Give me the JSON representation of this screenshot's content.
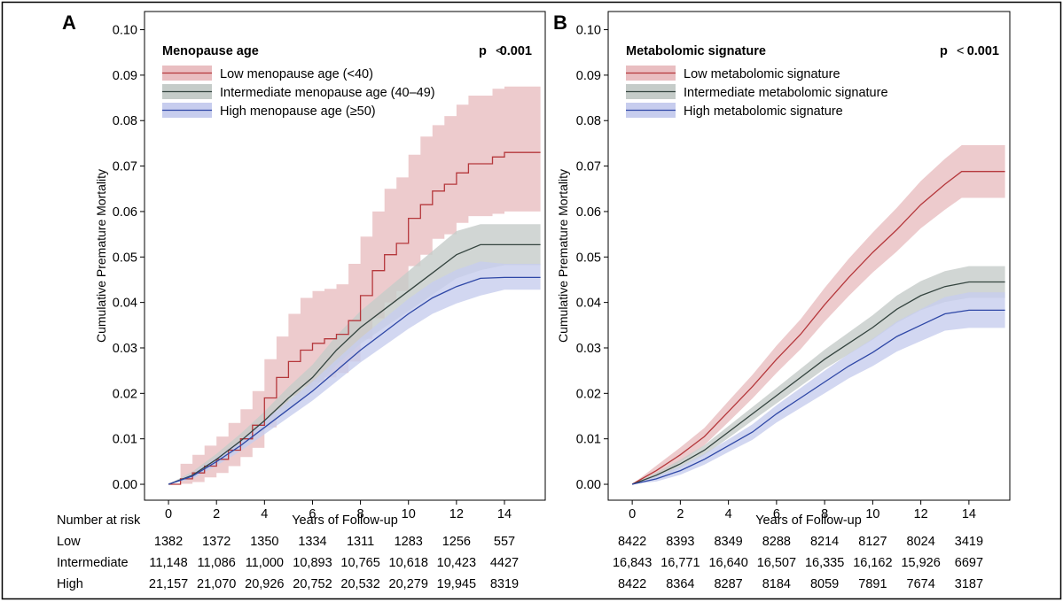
{
  "risk_table": {
    "header": "Number at risk",
    "row_labels": [
      "Low",
      "Intermediate",
      "High"
    ]
  },
  "colors": {
    "low": "#b5383c",
    "intermediate": "#34443f",
    "high": "#2e47a6",
    "low_band": "#e9bec1",
    "intermediate_band": "#c5ccc9",
    "high_band": "#c7cdee",
    "frame": "#000000"
  },
  "chart_data": [
    {
      "type": "line",
      "panel_label": "A",
      "title": "Menopause age",
      "p_label": "p",
      "p_op": "<",
      "p_value": "0.001",
      "xlabel": "Years of Follow-up",
      "ylabel": "Cumulative Premature Mortality",
      "xlim": [
        -1,
        15.7
      ],
      "ylim": [
        -0.0035,
        0.104
      ],
      "xticks": [
        "0",
        "2",
        "4",
        "6",
        "8",
        "10",
        "12",
        "14"
      ],
      "yticks": [
        "0.00",
        "0.01",
        "0.02",
        "0.03",
        "0.04",
        "0.05",
        "0.06",
        "0.07",
        "0.08",
        "0.09",
        "0.10"
      ],
      "series": [
        {
          "key": "low",
          "name": "Low menopause age (<40)",
          "step": true,
          "x": [
            0,
            0.5,
            1,
            1.5,
            2,
            2.5,
            3,
            3.5,
            4,
            4.5,
            5,
            5.5,
            6,
            6.5,
            7,
            7.5,
            8,
            8.5,
            9,
            9.5,
            10,
            10.5,
            11,
            11.5,
            12,
            12.5,
            13,
            13.5,
            14,
            15.5
          ],
          "values": [
            0,
            0.0012,
            0.0025,
            0.004,
            0.0055,
            0.0075,
            0.01,
            0.013,
            0.019,
            0.0235,
            0.027,
            0.0295,
            0.031,
            0.032,
            0.033,
            0.036,
            0.0415,
            0.047,
            0.0505,
            0.053,
            0.0585,
            0.0615,
            0.0645,
            0.066,
            0.0685,
            0.0705,
            0.0705,
            0.072,
            0.073,
            0.073
          ],
          "lower": [
            0,
            0.0001,
            0.0005,
            0.0015,
            0.0025,
            0.004,
            0.006,
            0.008,
            0.0125,
            0.0165,
            0.0195,
            0.0215,
            0.0225,
            0.0235,
            0.0245,
            0.027,
            0.032,
            0.0365,
            0.04,
            0.0425,
            0.048,
            0.0505,
            0.054,
            0.055,
            0.0575,
            0.059,
            0.059,
            0.0595,
            0.06,
            0.06
          ],
          "upper": [
            0,
            0.0045,
            0.0065,
            0.0085,
            0.0105,
            0.0135,
            0.0165,
            0.0205,
            0.0275,
            0.0325,
            0.0375,
            0.041,
            0.0425,
            0.043,
            0.044,
            0.0485,
            0.0545,
            0.06,
            0.065,
            0.0675,
            0.0725,
            0.0765,
            0.079,
            0.081,
            0.0835,
            0.0855,
            0.0855,
            0.087,
            0.0875,
            0.0875
          ]
        },
        {
          "key": "intermediate",
          "name": "Intermediate menopause age (40–49)",
          "step": false,
          "x": [
            0,
            1,
            2,
            3,
            4,
            5,
            6,
            7,
            8,
            9,
            10,
            11,
            12,
            13,
            14,
            15.5
          ],
          "values": [
            0,
            0.002,
            0.0055,
            0.0095,
            0.014,
            0.019,
            0.0235,
            0.0295,
            0.0345,
            0.0385,
            0.0425,
            0.0465,
            0.0505,
            0.0527,
            0.0527,
            0.0527
          ],
          "lower": [
            0,
            0.0012,
            0.0043,
            0.0079,
            0.012,
            0.0166,
            0.0207,
            0.0263,
            0.0309,
            0.0345,
            0.0381,
            0.0417,
            0.0453,
            0.0471,
            0.0482,
            0.0482
          ],
          "upper": [
            0,
            0.0028,
            0.0067,
            0.0111,
            0.016,
            0.0214,
            0.0263,
            0.0327,
            0.0381,
            0.0425,
            0.0469,
            0.0513,
            0.0557,
            0.0572,
            0.0572,
            0.0572
          ]
        },
        {
          "key": "high",
          "name": "High menopause age (≥50)",
          "step": false,
          "x": [
            0,
            1,
            2,
            3,
            4,
            5,
            6,
            7,
            8,
            9,
            10,
            11,
            12,
            13,
            14,
            15.5
          ],
          "values": [
            0,
            0.0018,
            0.005,
            0.0085,
            0.0125,
            0.0165,
            0.0205,
            0.025,
            0.0295,
            0.0335,
            0.0375,
            0.041,
            0.0435,
            0.0453,
            0.0455,
            0.0455
          ],
          "lower": [
            0,
            0.0012,
            0.0041,
            0.0073,
            0.011,
            0.0147,
            0.0184,
            0.0226,
            0.0268,
            0.0305,
            0.0342,
            0.0375,
            0.0398,
            0.0415,
            0.0428,
            0.0428
          ],
          "upper": [
            0,
            0.0024,
            0.0059,
            0.0097,
            0.014,
            0.0183,
            0.0226,
            0.0274,
            0.0322,
            0.0365,
            0.0408,
            0.0445,
            0.0472,
            0.049,
            0.0485,
            0.0485
          ]
        }
      ],
      "at_risk": {
        "low": [
          "1382",
          "1372",
          "1350",
          "1334",
          "1311",
          "1283",
          "1256",
          "557"
        ],
        "intermediate": [
          "11,148",
          "11,086",
          "11,000",
          "10,893",
          "10,765",
          "10,618",
          "10,423",
          "4427"
        ],
        "high": [
          "21,157",
          "21,070",
          "20,926",
          "20,752",
          "20,532",
          "20,279",
          "19,945",
          "8319"
        ]
      }
    },
    {
      "type": "line",
      "panel_label": "B",
      "title": "Metabolomic signature",
      "p_label": "p",
      "p_op": "<",
      "p_value": "0.001",
      "xlabel": "Years of Follow-up",
      "ylabel": "Cumulative Premature Mortality",
      "xlim": [
        -1,
        15.7
      ],
      "ylim": [
        -0.0035,
        0.104
      ],
      "xticks": [
        "0",
        "2",
        "4",
        "6",
        "8",
        "10",
        "12",
        "14"
      ],
      "yticks": [
        "0.00",
        "0.01",
        "0.02",
        "0.03",
        "0.04",
        "0.05",
        "0.06",
        "0.07",
        "0.08",
        "0.09",
        "0.10"
      ],
      "series": [
        {
          "key": "low",
          "name": "Low metabolomic signature",
          "step": false,
          "x": [
            0,
            1,
            2,
            3,
            4,
            5,
            6,
            7,
            8,
            9,
            10,
            11,
            12,
            13,
            13.7,
            15.5
          ],
          "values": [
            0,
            0.003,
            0.0065,
            0.0105,
            0.016,
            0.0215,
            0.0275,
            0.033,
            0.0395,
            0.0455,
            0.051,
            0.056,
            0.0615,
            0.066,
            0.0688,
            0.0688
          ],
          "lower": [
            0,
            0.0019,
            0.0049,
            0.0086,
            0.0137,
            0.0189,
            0.0245,
            0.0297,
            0.0358,
            0.0414,
            0.0466,
            0.0512,
            0.0563,
            0.0604,
            0.063,
            0.063
          ],
          "upper": [
            0,
            0.0041,
            0.0081,
            0.0124,
            0.0183,
            0.0241,
            0.0305,
            0.0363,
            0.0432,
            0.0496,
            0.0554,
            0.0608,
            0.0667,
            0.0716,
            0.0746,
            0.0746
          ]
        },
        {
          "key": "intermediate",
          "name": "Intermediate metabolomic signature",
          "step": false,
          "x": [
            0,
            1,
            2,
            3,
            4,
            5,
            6,
            7,
            8,
            9,
            10,
            11,
            12,
            13,
            14,
            15.5
          ],
          "values": [
            0,
            0.002,
            0.0045,
            0.0075,
            0.0115,
            0.0155,
            0.0195,
            0.0235,
            0.0275,
            0.031,
            0.0345,
            0.0385,
            0.0415,
            0.0435,
            0.0445,
            0.0445
          ],
          "lower": [
            0,
            0.0014,
            0.0036,
            0.0064,
            0.0102,
            0.014,
            0.0178,
            0.0216,
            0.0254,
            0.0286,
            0.0318,
            0.0355,
            0.0383,
            0.0401,
            0.041,
            0.041
          ],
          "upper": [
            0,
            0.0026,
            0.0054,
            0.0086,
            0.0128,
            0.017,
            0.0212,
            0.0254,
            0.0296,
            0.0334,
            0.0372,
            0.0415,
            0.0447,
            0.0469,
            0.048,
            0.048
          ]
        },
        {
          "key": "high",
          "name": "High metabolomic signature",
          "step": false,
          "x": [
            0,
            1,
            2,
            3,
            4,
            5,
            6,
            7,
            8,
            9,
            10,
            11,
            12,
            13,
            14,
            15.5
          ],
          "values": [
            0,
            0.0012,
            0.003,
            0.0055,
            0.0085,
            0.0115,
            0.0155,
            0.019,
            0.0225,
            0.026,
            0.029,
            0.0325,
            0.035,
            0.0375,
            0.0383,
            0.0383
          ],
          "lower": [
            0,
            0.0006,
            0.0021,
            0.0043,
            0.0071,
            0.0098,
            0.0136,
            0.0168,
            0.02,
            0.0233,
            0.026,
            0.0292,
            0.0315,
            0.0338,
            0.0344,
            0.0344
          ],
          "upper": [
            0,
            0.0018,
            0.0039,
            0.0067,
            0.0099,
            0.0132,
            0.0174,
            0.0212,
            0.025,
            0.0287,
            0.032,
            0.0358,
            0.0385,
            0.0412,
            0.0422,
            0.0422
          ]
        }
      ],
      "at_risk": {
        "low": [
          "8422",
          "8393",
          "8349",
          "8288",
          "8214",
          "8127",
          "8024",
          "3419"
        ],
        "intermediate": [
          "16,843",
          "16,771",
          "16,640",
          "16,507",
          "16,335",
          "16,162",
          "15,926",
          "6697"
        ],
        "high": [
          "8422",
          "8364",
          "8287",
          "8184",
          "8059",
          "7891",
          "7674",
          "3187"
        ]
      }
    }
  ]
}
